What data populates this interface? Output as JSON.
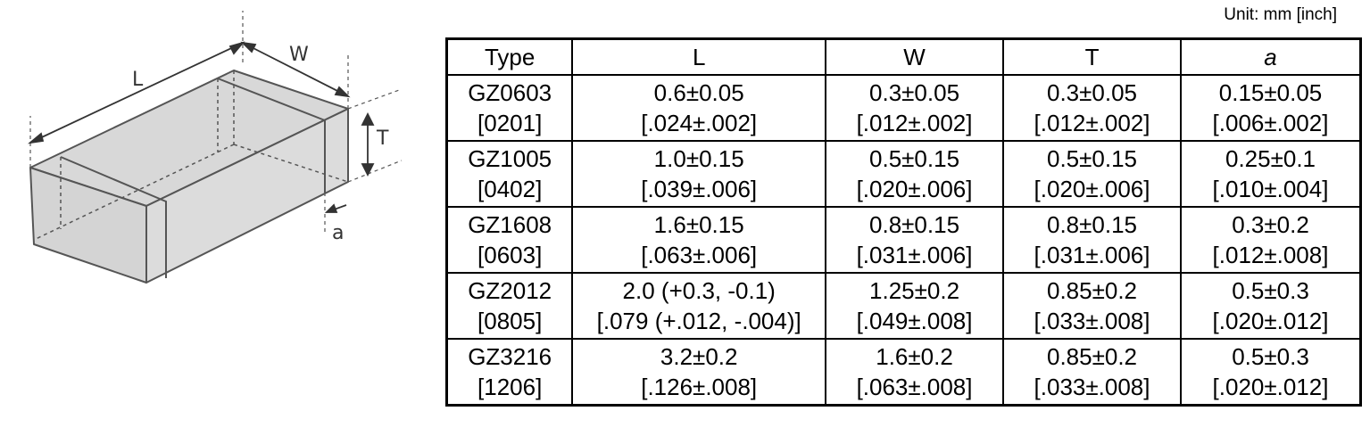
{
  "unit_note": "Unit: mm [inch]",
  "diagram_labels": {
    "length": "L",
    "width": "W",
    "thickness": "T",
    "termination": "a"
  },
  "table": {
    "headers": [
      "Type",
      "L",
      "W",
      "T",
      "a"
    ],
    "rows": [
      {
        "type": [
          "GZ0603",
          "[0201]"
        ],
        "L": [
          "0.6±0.05",
          "[.024±.002]"
        ],
        "W": [
          "0.3±0.05",
          "[.012±.002]"
        ],
        "T": [
          "0.3±0.05",
          "[.012±.002]"
        ],
        "a": [
          "0.15±0.05",
          "[.006±.002]"
        ]
      },
      {
        "type": [
          "GZ1005",
          "[0402]"
        ],
        "L": [
          "1.0±0.15",
          "[.039±.006]"
        ],
        "W": [
          "0.5±0.15",
          "[.020±.006]"
        ],
        "T": [
          "0.5±0.15",
          "[.020±.006]"
        ],
        "a": [
          "0.25±0.1",
          "[.010±.004]"
        ]
      },
      {
        "type": [
          "GZ1608",
          "[0603]"
        ],
        "L": [
          "1.6±0.15",
          "[.063±.006]"
        ],
        "W": [
          "0.8±0.15",
          "[.031±.006]"
        ],
        "T": [
          "0.8±0.15",
          "[.031±.006]"
        ],
        "a": [
          "0.3±0.2",
          "[.012±.008]"
        ]
      },
      {
        "type": [
          "GZ2012",
          "[0805]"
        ],
        "L": [
          "2.0 (+0.3, -0.1)",
          "[.079 (+.012, -.004)]"
        ],
        "W": [
          "1.25±0.2",
          "[.049±.008]"
        ],
        "T": [
          "0.85±0.2",
          "[.033±.008]"
        ],
        "a": [
          "0.5±0.3",
          "[.020±.012]"
        ]
      },
      {
        "type": [
          "GZ3216",
          "[1206]"
        ],
        "L": [
          "3.2±0.2",
          "[.126±.008]"
        ],
        "W": [
          "1.6±0.2",
          "[.063±.008]"
        ],
        "T": [
          "0.85±0.2",
          "[.033±.008]"
        ],
        "a": [
          "0.5±0.3",
          "[.020±.012]"
        ]
      }
    ]
  }
}
